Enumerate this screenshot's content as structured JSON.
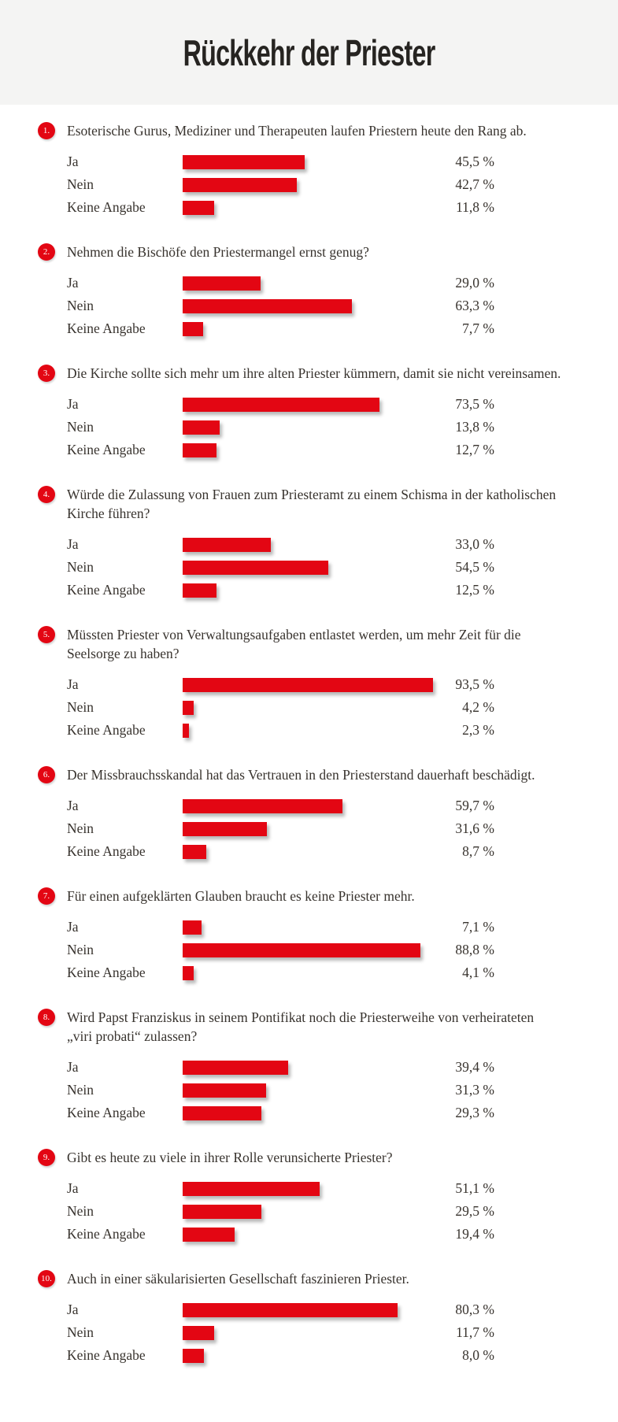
{
  "header": {
    "title": "Rückkehr der Priester"
  },
  "colors": {
    "bar_red": "#e30613",
    "badge_red": "#e30613",
    "header_background": "#f4f4f3",
    "text": "#38332e"
  },
  "chart_data": {
    "type": "bar",
    "orientation": "horizontal",
    "title": "Rückkehr der Priester",
    "unit": "%",
    "value_format": "comma-decimal, e.g. 45,5 %",
    "axis_range": [
      0,
      100
    ],
    "grid": false,
    "legend": false,
    "answer_categories": [
      "Ja",
      "Nein",
      "Keine Angabe"
    ],
    "questions": [
      {
        "number": "1.",
        "line1": "Esoterische Gurus, Mediziner und Therapeuten laufen Priestern heute den Rang ab.",
        "line2": "",
        "answers": [
          {
            "label": "Ja",
            "value": 45.5,
            "display": "45,5 %"
          },
          {
            "label": "Nein",
            "value": 42.7,
            "display": "42,7 %"
          },
          {
            "label": "Keine Angabe",
            "value": 11.8,
            "display": "11,8 %"
          }
        ]
      },
      {
        "number": "2.",
        "line1": "Nehmen die Bischöfe den Priestermangel ernst genug?",
        "line2": "",
        "answers": [
          {
            "label": "Ja",
            "value": 29.0,
            "display": "29,0 %"
          },
          {
            "label": "Nein",
            "value": 63.3,
            "display": "63,3 %"
          },
          {
            "label": "Keine Angabe",
            "value": 7.7,
            "display": "7,7 %"
          }
        ]
      },
      {
        "number": "3.",
        "line1": "Die Kirche sollte sich mehr um ihre alten Priester kümmern, damit sie nicht vereinsamen.",
        "line2": "",
        "answers": [
          {
            "label": "Ja",
            "value": 73.5,
            "display": "73,5 %"
          },
          {
            "label": "Nein",
            "value": 13.8,
            "display": "13,8 %"
          },
          {
            "label": "Keine Angabe",
            "value": 12.7,
            "display": "12,7 %"
          }
        ]
      },
      {
        "number": "4.",
        "line1": "Würde die Zulassung von Frauen zum Priesteramt zu einem Schisma in der katholischen",
        "line2": "Kirche führen?",
        "answers": [
          {
            "label": "Ja",
            "value": 33.0,
            "display": "33,0 %"
          },
          {
            "label": "Nein",
            "value": 54.5,
            "display": "54,5 %"
          },
          {
            "label": "Keine Angabe",
            "value": 12.5,
            "display": "12,5 %"
          }
        ]
      },
      {
        "number": "5.",
        "line1": "Müssten Priester von Verwaltungsaufgaben entlastet werden, um mehr Zeit für die",
        "line2": "Seelsorge zu haben?",
        "answers": [
          {
            "label": "Ja",
            "value": 93.5,
            "display": "93,5 %"
          },
          {
            "label": "Nein",
            "value": 4.2,
            "display": "4,2 %"
          },
          {
            "label": "Keine Angabe",
            "value": 2.3,
            "display": "2,3 %"
          }
        ]
      },
      {
        "number": "6.",
        "line1": "Der Missbrauchsskandal hat das Vertrauen in den Priesterstand dauerhaft beschädigt.",
        "line2": "",
        "answers": [
          {
            "label": "Ja",
            "value": 59.7,
            "display": "59,7 %"
          },
          {
            "label": "Nein",
            "value": 31.6,
            "display": "31,6 %"
          },
          {
            "label": "Keine Angabe",
            "value": 8.7,
            "display": "8,7 %"
          }
        ]
      },
      {
        "number": "7.",
        "line1": "Für einen aufgeklärten Glauben braucht es keine Priester mehr.",
        "line2": "",
        "answers": [
          {
            "label": "Ja",
            "value": 7.1,
            "display": "7,1 %"
          },
          {
            "label": "Nein",
            "value": 88.8,
            "display": "88,8 %"
          },
          {
            "label": "Keine Angabe",
            "value": 4.1,
            "display": "4,1 %"
          }
        ]
      },
      {
        "number": "8.",
        "line1": "Wird Papst Franziskus in seinem Pontifikat noch die Priesterweihe von verheirateten",
        "line2": "„viri probati“ zulassen?",
        "answers": [
          {
            "label": "Ja",
            "value": 39.4,
            "display": "39,4 %"
          },
          {
            "label": "Nein",
            "value": 31.3,
            "display": "31,3 %"
          },
          {
            "label": "Keine Angabe",
            "value": 29.3,
            "display": "29,3 %"
          }
        ]
      },
      {
        "number": "9.",
        "line1": "Gibt es heute zu viele in ihrer Rolle verunsicherte Priester?",
        "line2": "",
        "answers": [
          {
            "label": "Ja",
            "value": 51.1,
            "display": "51,1 %"
          },
          {
            "label": "Nein",
            "value": 29.5,
            "display": "29,5 %"
          },
          {
            "label": "Keine Angabe",
            "value": 19.4,
            "display": "19,4 %"
          }
        ]
      },
      {
        "number": "10.",
        "line1": "Auch in einer säkularisierten Gesellschaft faszinieren Priester.",
        "line2": "",
        "answers": [
          {
            "label": "Ja",
            "value": 80.3,
            "display": "80,3 %"
          },
          {
            "label": "Nein",
            "value": 11.7,
            "display": "11,7 %"
          },
          {
            "label": "Keine Angabe",
            "value": 8.0,
            "display": "8,0 %"
          }
        ]
      }
    ]
  }
}
